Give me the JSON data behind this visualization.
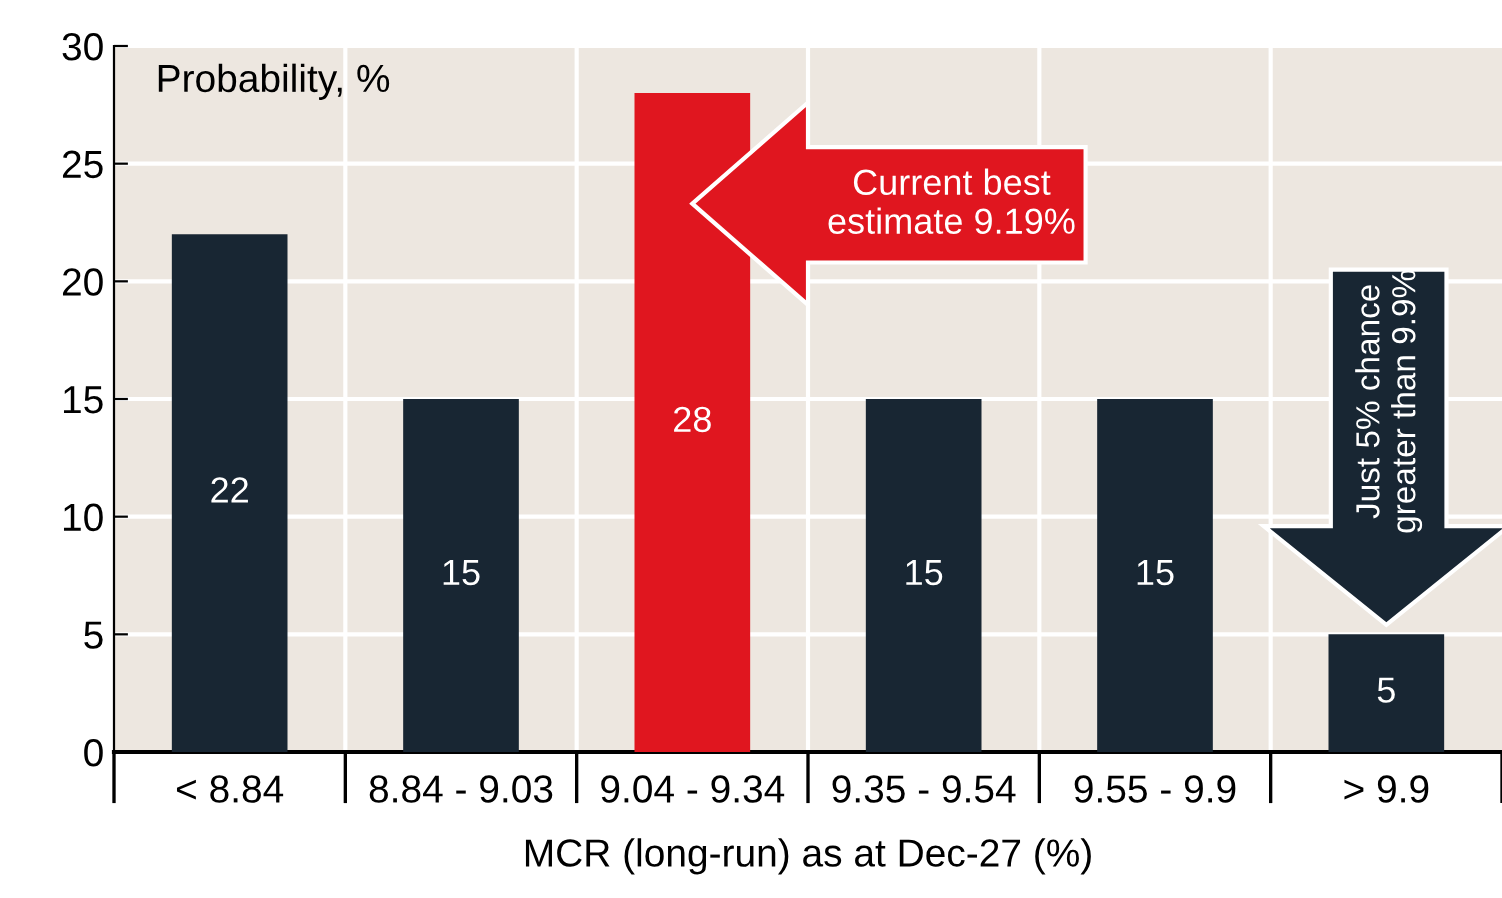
{
  "chart_data": {
    "type": "bar",
    "xlabel": "MCR (long-run) as at Dec-27 (%)",
    "ylabel": "Probability, %",
    "categories": [
      "< 8.84",
      "8.84 - 9.03",
      "9.04 - 9.34",
      "9.35 - 9.54",
      "9.55 - 9.9",
      "> 9.9"
    ],
    "values": [
      22,
      15,
      28,
      15,
      15,
      5
    ],
    "colors": [
      "#182633",
      "#182633",
      "#e0161f",
      "#182633",
      "#182633",
      "#182633"
    ],
    "data_labels": true,
    "ylim": [
      0,
      30
    ],
    "yticks": [
      0,
      5,
      10,
      15,
      20,
      25,
      30
    ],
    "grid": true,
    "annotations": [
      "Current best\nestimate 9.19%",
      "Just 5% chance\ngreater than 9.9%"
    ]
  }
}
